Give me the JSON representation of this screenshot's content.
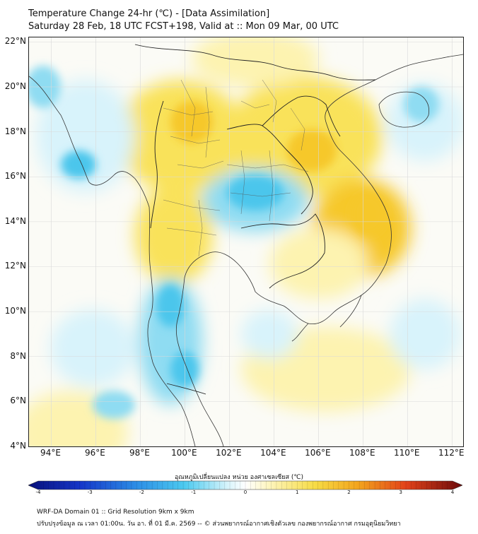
{
  "header": {
    "title_line1": "Temperature Change 24-hr (℃) - [Data Assimilation]",
    "title_line2": "Saturday 28 Feb, 18 UTC FCST+198, Valid at :: Mon 09 Mar, 00 UTC"
  },
  "map": {
    "lon_range": [
      93,
      112.5
    ],
    "lat_range": [
      4,
      22.2
    ],
    "lat_ticks": [
      "22°N",
      "20°N",
      "18°N",
      "16°N",
      "14°N",
      "12°N",
      "10°N",
      "8°N",
      "6°N",
      "4°N"
    ],
    "lon_ticks": [
      "94°E",
      "96°E",
      "98°E",
      "100°E",
      "102°E",
      "104°E",
      "106°E",
      "108°E",
      "110°E",
      "112°E"
    ],
    "colors": {
      "warm_light": "#fdf3b0",
      "warm": "#f9e25a",
      "warm_strong": "#f6c82c",
      "cool_light": "#d8f3fb",
      "cool": "#8fdcf2",
      "cool_strong": "#4cc6ec",
      "coast": "#333333",
      "grid": "#d9d9d9"
    }
  },
  "colorbar": {
    "label": "อุณหภูมิเปลี่ยนแปลง หน่วย องศาเซลเซียส (℃)",
    "ticks": [
      "-4",
      "-3",
      "-2",
      "-1",
      "0",
      "1",
      "2",
      "3",
      "4"
    ],
    "range": [
      -4,
      4
    ]
  },
  "footer": {
    "line1": "WRF-DA Domain 01 :: Grid Resolution 9km x 9km",
    "line2": "ปรับปรุงข้อมูล ณ เวลา 01:00น. วัน อา. ที่ 01 มี.ค. 2569 -- © ส่วนพยากรณ์อากาศเชิงตัวเลข กองพยากรณ์อากาศ กรมอุตุนิยมวิทยา"
  }
}
